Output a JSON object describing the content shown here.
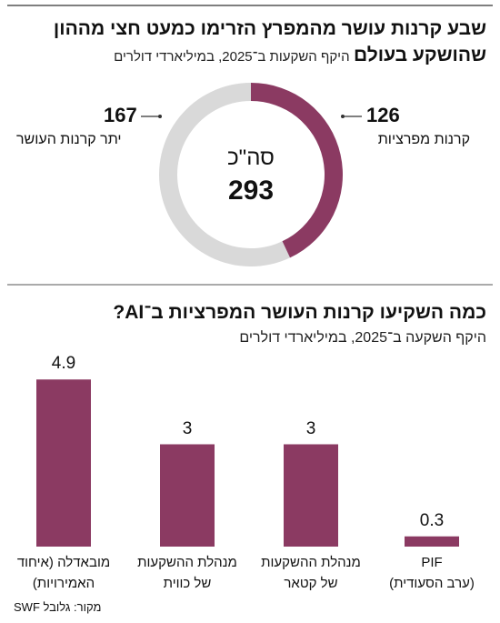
{
  "chart_data": [
    {
      "type": "pie",
      "title": "שבע קרנות עושר מהמפרץ הזרימו כמעט חצי מההון שהושקע בעולם",
      "subtitle": "היקף השקעות ב־2025, במיליארדי דולרים",
      "categories": [
        "קרנות מפרציות",
        "יתר קרנות העושר"
      ],
      "values": [
        126,
        167
      ],
      "colors": [
        "#8b3a62",
        "#d9d9d9"
      ],
      "total_label": "סה\"כ",
      "total": 293
    },
    {
      "type": "bar",
      "title": "כמה השקיעו קרנות העושר המפרציות ב־AI?",
      "subtitle": "היקף השקעה ב־2025, במיליארדי דולרים",
      "categories": [
        "מובאדלה (איחוד\nהאמירויות)",
        "מנהלת ההשקעות\nשל כווית",
        "מנהלת ההשקעות\nשל קטאר",
        "PIF\n(ערב הסעודית)"
      ],
      "values": [
        4.9,
        3,
        3,
        0.3
      ],
      "color": "#8b3a62"
    }
  ],
  "source": "מקור: גלובל SWF"
}
